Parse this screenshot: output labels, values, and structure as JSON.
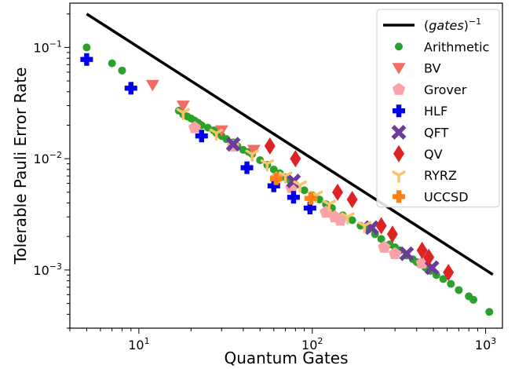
{
  "chart_data": {
    "type": "scatter",
    "title": "",
    "xlabel": "Quantum Gates",
    "ylabel": "Tolerable Pauli Error Rate",
    "xscale": "log",
    "yscale": "log",
    "xlim": [
      4,
      1250
    ],
    "ylim": [
      0.0003,
      0.25
    ],
    "x_ticks": [
      {
        "value": 10,
        "base": "10",
        "exp": "1"
      },
      {
        "value": 100,
        "base": "10",
        "exp": "2"
      },
      {
        "value": 1000,
        "base": "10",
        "exp": "3"
      }
    ],
    "y_ticks": [
      {
        "value": 0.001,
        "base": "10",
        "exp": "−3"
      },
      {
        "value": 0.01,
        "base": "10",
        "exp": "−2"
      },
      {
        "value": 0.1,
        "base": "10",
        "exp": "−1"
      }
    ],
    "grid": false,
    "legend_position": "upper-right",
    "reference_line": {
      "label_prefix": "(",
      "label_italic": "gates",
      "label_suffix": ")",
      "label_exponent": "−1",
      "x": [
        5,
        1100
      ],
      "y": [
        0.2,
        0.00091
      ],
      "color": "#000000"
    },
    "series": [
      {
        "name": "Arithmetic",
        "marker": "circle",
        "color": "#2ca02c",
        "x": [
          5,
          7,
          8,
          17,
          18,
          19,
          20,
          21,
          22,
          23,
          25,
          27,
          28,
          30,
          32,
          35,
          37,
          40,
          43,
          45,
          50,
          55,
          60,
          65,
          70,
          75,
          80,
          90,
          100,
          110,
          120,
          130,
          150,
          170,
          190,
          210,
          230,
          250,
          280,
          300,
          320,
          350,
          380,
          400,
          420,
          450,
          480,
          520,
          570,
          630,
          700,
          800,
          850,
          1050
        ],
        "y": [
          0.1,
          0.072,
          0.062,
          0.027,
          0.025,
          0.024,
          0.023,
          0.022,
          0.021,
          0.02,
          0.019,
          0.018,
          0.017,
          0.016,
          0.015,
          0.014,
          0.013,
          0.012,
          0.0115,
          0.011,
          0.0097,
          0.0088,
          0.008,
          0.0074,
          0.0068,
          0.0063,
          0.0058,
          0.0052,
          0.0047,
          0.0043,
          0.0039,
          0.0036,
          0.0031,
          0.0028,
          0.0025,
          0.0023,
          0.0021,
          0.0019,
          0.0017,
          0.0016,
          0.0015,
          0.00135,
          0.00125,
          0.00118,
          0.00112,
          0.00105,
          0.00098,
          0.0009,
          0.00083,
          0.00075,
          0.00066,
          0.00058,
          0.00054,
          0.00042
        ]
      },
      {
        "name": "BV",
        "marker": "triangle-down",
        "color": "#f26c64",
        "x": [
          12,
          18,
          30,
          46
        ],
        "y": [
          0.046,
          0.03,
          0.018,
          0.012
        ]
      },
      {
        "name": "Grover",
        "marker": "pentagon",
        "color": "#f7a3a7",
        "x": [
          21,
          35,
          62,
          76,
          120,
          135,
          145,
          260,
          300,
          430
        ],
        "y": [
          0.019,
          0.013,
          0.0067,
          0.0055,
          0.0033,
          0.003,
          0.0028,
          0.0016,
          0.0014,
          0.00115
        ]
      },
      {
        "name": "HLF",
        "marker": "plus",
        "color": "#0000ee",
        "x": [
          5,
          9,
          23,
          42,
          60,
          78,
          97
        ],
        "y": [
          0.078,
          0.043,
          0.016,
          0.0083,
          0.0057,
          0.0045,
          0.0036
        ]
      },
      {
        "name": "QFT",
        "marker": "x",
        "color": "#6a3d9a",
        "x": [
          35,
          78,
          220,
          350,
          490
        ],
        "y": [
          0.0135,
          0.0063,
          0.0024,
          0.0014,
          0.00105
        ]
      },
      {
        "name": "QV",
        "marker": "diamond",
        "color": "#dd2424",
        "x": [
          57,
          80,
          140,
          170,
          250,
          290,
          430,
          470,
          610
        ],
        "y": [
          0.013,
          0.01,
          0.005,
          0.0043,
          0.0025,
          0.0021,
          0.0015,
          0.0013,
          0.00095
        ]
      },
      {
        "name": "RYRZ",
        "marker": "tri-down",
        "color": "#f8c36a",
        "x": [
          18,
          28,
          45,
          55,
          70,
          85,
          105,
          125,
          160,
          200
        ],
        "y": [
          0.026,
          0.017,
          0.011,
          0.009,
          0.007,
          0.0058,
          0.0047,
          0.0039,
          0.003,
          0.0025
        ]
      },
      {
        "name": "UCCSD",
        "marker": "plus",
        "color": "#ff7f0e",
        "x": [
          62,
          98
        ],
        "y": [
          0.0066,
          0.0044
        ]
      }
    ]
  }
}
